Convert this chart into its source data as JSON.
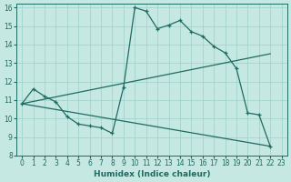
{
  "xlabel": "Humidex (Indice chaleur)",
  "xlim": [
    -0.5,
    23.5
  ],
  "ylim": [
    8,
    16.2
  ],
  "xticks": [
    0,
    1,
    2,
    3,
    4,
    5,
    6,
    7,
    8,
    9,
    10,
    11,
    12,
    13,
    14,
    15,
    16,
    17,
    18,
    19,
    20,
    21,
    22,
    23
  ],
  "yticks": [
    8,
    9,
    10,
    11,
    12,
    13,
    14,
    15,
    16
  ],
  "bg_color": "#c5e8e2",
  "grid_color": "#9ecfc8",
  "line_color": "#1e6b63",
  "line1": {
    "x": [
      0,
      1,
      2,
      3,
      4,
      5,
      6,
      7,
      8,
      9,
      10,
      11,
      12,
      13,
      14,
      15,
      16,
      17,
      18,
      19,
      20,
      21,
      22
    ],
    "y": [
      10.8,
      11.6,
      11.2,
      10.9,
      10.1,
      9.7,
      9.6,
      9.5,
      9.2,
      11.7,
      16.0,
      15.8,
      14.85,
      15.05,
      15.3,
      14.7,
      14.45,
      13.9,
      13.55,
      12.7,
      10.3,
      10.2,
      8.5
    ]
  },
  "line2": {
    "x": [
      0,
      22
    ],
    "y": [
      10.8,
      13.5
    ]
  },
  "line3": {
    "x": [
      0,
      22
    ],
    "y": [
      10.8,
      8.5
    ]
  }
}
